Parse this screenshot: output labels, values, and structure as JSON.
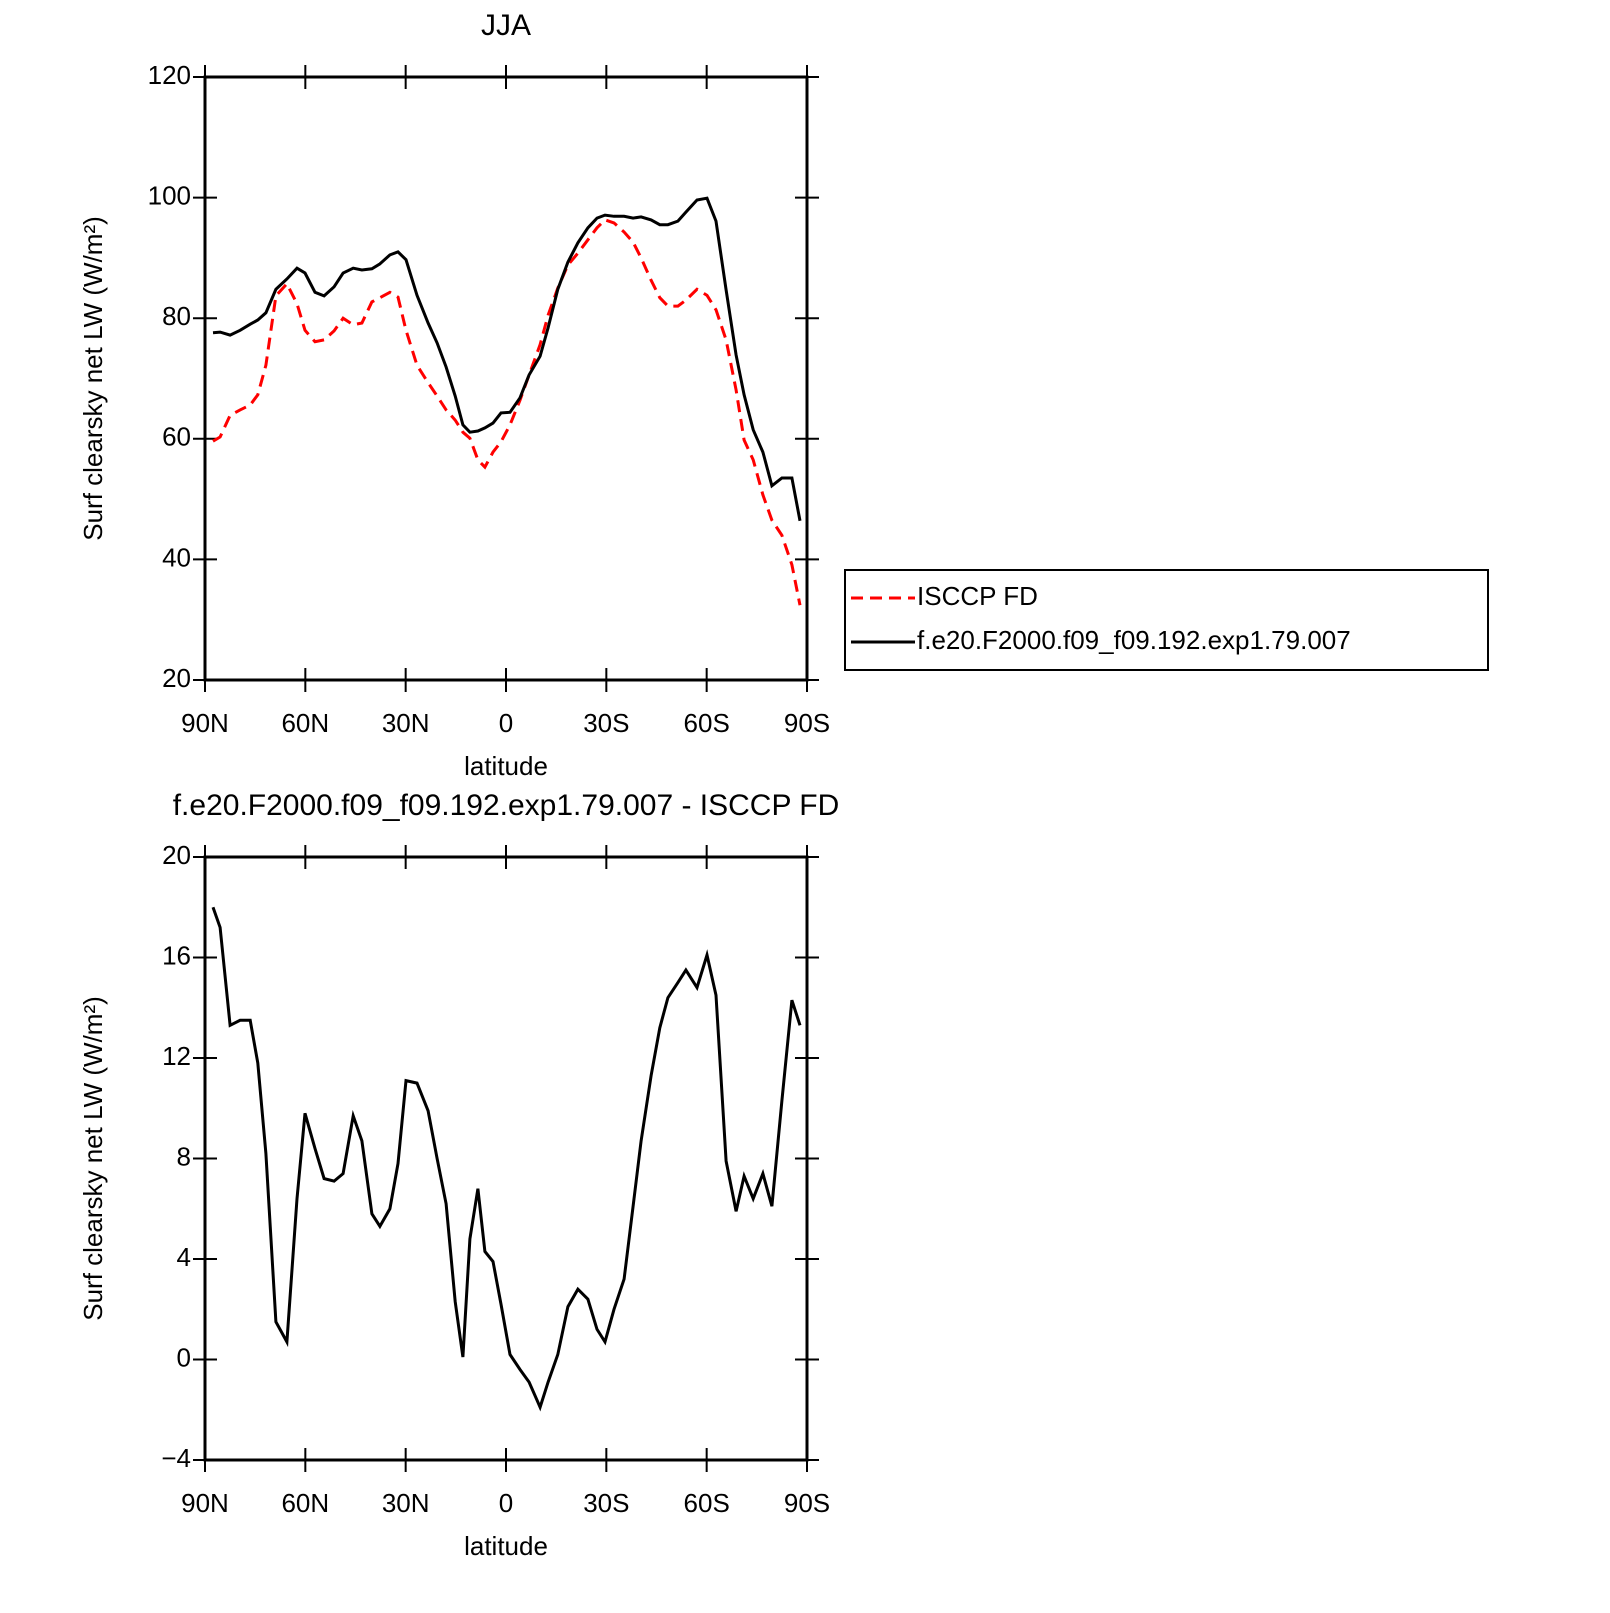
{
  "chart_data": [
    {
      "type": "line",
      "title": "JJA",
      "xlabel": "latitude",
      "ylabel": "Surf clearsky net LW (W/m²)",
      "x": [
        87.6,
        85.5,
        82.5,
        79.5,
        76.5,
        74.2,
        71.8,
        68.8,
        65.5,
        62.5,
        60.1,
        57.1,
        54.4,
        51.4,
        48.7,
        45.7,
        43.1,
        40.1,
        37.7,
        34.7,
        32.3,
        29.9,
        26.6,
        23.3,
        20.6,
        17.9,
        15.2,
        12.9,
        10.8,
        8.4,
        6.3,
        3.9,
        1.5,
        -1.2,
        -4.2,
        -6.9,
        -10.2,
        -12.6,
        -15.5,
        -18.5,
        -21.5,
        -24.5,
        -27.2,
        -29.6,
        -32.3,
        -35.3,
        -38.0,
        -40.4,
        -43.4,
        -46.0,
        -48.4,
        -51.4,
        -53.8,
        -57.1,
        -60.1,
        -62.8,
        -65.8,
        -68.8,
        -71.2,
        -73.9,
        -76.8,
        -79.5,
        -82.5,
        -85.5,
        -87.9
      ],
      "series": [
        {
          "name": "ISCCP FD",
          "color": "#ff0000",
          "linestyle": "dashed",
          "values": [
            59.6,
            60.3,
            63.9,
            64.8,
            65.6,
            67.3,
            72.2,
            83.7,
            85.7,
            82.4,
            78.0,
            76.1,
            76.4,
            77.9,
            80.0,
            78.9,
            79.2,
            82.7,
            83.4,
            84.3,
            83.5,
            78.0,
            72.2,
            69.3,
            67.1,
            64.8,
            63.1,
            61.1,
            60.1,
            56.5,
            55.3,
            57.8,
            59.5,
            62.3,
            66.4,
            70.6,
            75.6,
            80.5,
            85.0,
            88.8,
            90.8,
            93.0,
            95.0,
            96.3,
            95.8,
            94.3,
            92.6,
            90.0,
            86.3,
            83.4,
            82.0,
            82.0,
            83.0,
            84.8,
            83.8,
            81.4,
            76.4,
            68.1,
            59.8,
            56.5,
            50.7,
            46.5,
            44.0,
            39.1,
            32.4
          ]
        },
        {
          "name": "f.e20.F2000.f09_f09.192.exp1.79.007",
          "color": "#000000",
          "linestyle": "solid",
          "values": [
            77.6,
            77.7,
            77.2,
            78.0,
            79.0,
            79.7,
            80.9,
            84.8,
            86.5,
            88.3,
            87.5,
            84.3,
            83.7,
            85.2,
            87.5,
            88.3,
            88.0,
            88.2,
            89.0,
            90.5,
            91.0,
            89.7,
            83.8,
            79.2,
            75.9,
            71.9,
            67.1,
            62.3,
            61.1,
            61.3,
            61.8,
            62.6,
            64.3,
            64.4,
            66.8,
            70.6,
            73.7,
            78.4,
            84.8,
            89.3,
            92.5,
            95.0,
            96.6,
            97.1,
            96.9,
            96.9,
            96.6,
            96.8,
            96.3,
            95.5,
            95.5,
            96.1,
            97.6,
            99.6,
            99.9,
            96.1,
            84.7,
            73.9,
            67.3,
            61.5,
            57.8,
            52.2,
            53.5,
            53.5,
            46.4
          ]
        }
      ],
      "xlim": [
        90,
        -90
      ],
      "xticks": [
        {
          "value": 90,
          "label": "90N"
        },
        {
          "value": 60,
          "label": "60N"
        },
        {
          "value": 30,
          "label": "30N"
        },
        0,
        {
          "value": -30,
          "label": "30S"
        },
        {
          "value": -60,
          "label": "60S"
        },
        {
          "value": -90,
          "label": "90S"
        }
      ],
      "ylim": [
        20,
        120
      ],
      "yticks": [
        20,
        40,
        60,
        80,
        100,
        120
      ],
      "legend": "right"
    },
    {
      "type": "line",
      "title": "f.e20.F2000.f09_f09.192.exp1.79.007 - ISCCP FD",
      "xlabel": "latitude",
      "ylabel": "Surf clearsky net LW (W/m²)",
      "x": [
        87.6,
        85.5,
        82.5,
        79.5,
        76.5,
        74.2,
        71.8,
        68.8,
        65.5,
        62.5,
        60.1,
        57.1,
        54.4,
        51.4,
        48.7,
        45.7,
        43.1,
        40.1,
        37.7,
        34.7,
        32.3,
        29.9,
        26.6,
        23.3,
        20.6,
        17.9,
        15.2,
        12.9,
        10.8,
        8.4,
        6.3,
        3.9,
        1.5,
        -1.2,
        -4.2,
        -6.9,
        -10.2,
        -12.6,
        -15.5,
        -18.5,
        -21.5,
        -24.5,
        -27.2,
        -29.6,
        -32.3,
        -35.3,
        -38.0,
        -40.4,
        -43.4,
        -46.0,
        -48.4,
        -51.4,
        -53.8,
        -57.1,
        -60.1,
        -62.8,
        -65.8,
        -68.8,
        -71.2,
        -73.9,
        -76.8,
        -79.5,
        -82.5,
        -85.5,
        -87.9
      ],
      "series": [
        {
          "name": "f.e20.F2000.f09_f09.192.exp1.79.007 - ISCCP FD",
          "color": "#000000",
          "linestyle": "solid",
          "values": [
            18.0,
            17.2,
            13.3,
            13.5,
            13.5,
            11.8,
            8.2,
            1.5,
            0.7,
            6.4,
            9.8,
            8.4,
            7.2,
            7.1,
            7.4,
            9.7,
            8.7,
            5.8,
            5.3,
            6.0,
            7.8,
            11.1,
            11.0,
            9.9,
            8.0,
            6.2,
            2.3,
            0.1,
            4.8,
            6.8,
            4.3,
            3.9,
            2.2,
            0.2,
            -0.4,
            -0.9,
            -1.9,
            -0.9,
            0.2,
            2.1,
            2.8,
            2.4,
            1.2,
            0.7,
            2.0,
            3.2,
            6.1,
            8.7,
            11.3,
            13.2,
            14.4,
            15.0,
            15.5,
            14.8,
            16.1,
            14.5,
            7.9,
            5.9,
            7.3,
            6.4,
            7.4,
            6.1,
            10.3,
            14.3,
            13.3
          ]
        }
      ],
      "xlim": [
        90,
        -90
      ],
      "xticks": [
        {
          "value": 90,
          "label": "90N"
        },
        {
          "value": 60,
          "label": "60N"
        },
        {
          "value": 30,
          "label": "30N"
        },
        0,
        {
          "value": -30,
          "label": "30S"
        },
        {
          "value": -60,
          "label": "60S"
        },
        {
          "value": -90,
          "label": "90S"
        }
      ],
      "ylim": [
        -4,
        20
      ],
      "yticks": [
        {
          "value": -4,
          "label": "−4"
        },
        0,
        4,
        8,
        12,
        16,
        20
      ]
    }
  ]
}
